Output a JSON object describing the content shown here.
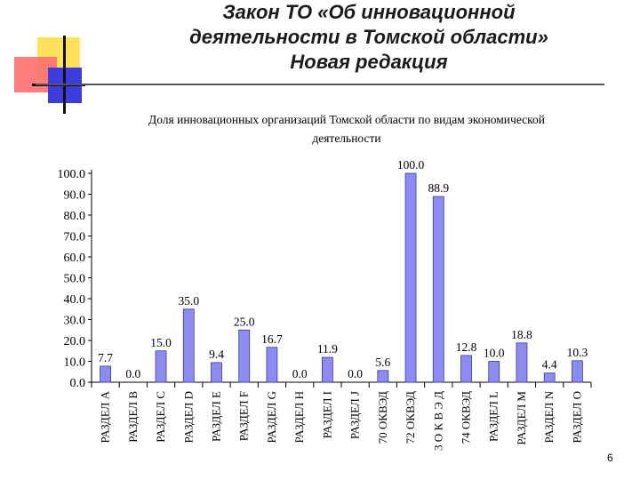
{
  "slide": {
    "title_lines": [
      "Закон ТО «Об инновационной",
      "деятельности в Томской области»",
      "Новая редакция"
    ],
    "page_number": "6"
  },
  "chart_data": {
    "type": "bar",
    "title": "Доля инновационных организаций Томской области по видам экономической деятельности",
    "title_lines": [
      "Доля инновационных организаций Томской области по видам экономической",
      "деятельности"
    ],
    "categories": [
      "РАЗДЕЛ A",
      "РАЗДЕЛ B",
      "РАЗДЕЛ C",
      "РАЗДЕЛ D",
      "РАЗДЕЛ E",
      "РАЗДЕЛ F",
      "РАЗДЕЛ G",
      "РАЗДЕЛ H",
      "РАЗДЕЛ I",
      "РАЗДЕЛ J",
      "70 ОКВЭД",
      "72 ОКВЭД",
      "3 О К В Э Д",
      "74 ОКВЭД",
      "РАЗДЕЛ L",
      "РАЗДЕЛ M",
      "РАЗДЕЛ N",
      "РАЗДЕЛ O"
    ],
    "values": [
      7.7,
      0.0,
      15.0,
      35.0,
      9.4,
      25.0,
      16.7,
      0.0,
      11.9,
      0.0,
      5.6,
      100.0,
      88.9,
      12.8,
      10.0,
      18.8,
      4.4,
      10.3
    ],
    "value_labels": [
      "7.7",
      "0.0",
      "15.0",
      "35.0",
      "9.4",
      "25.0",
      "16.7",
      "0.0",
      "11.9",
      "0.0",
      "5.6",
      "100.0",
      "88.9",
      "12.8",
      "10.0",
      "18.8",
      "4.4",
      "10.3"
    ],
    "yticks": [
      "0.0",
      "10.0",
      "20.0",
      "30.0",
      "40.0",
      "50.0",
      "60.0",
      "70.0",
      "80.0",
      "90.0",
      "100.0"
    ],
    "ylim": [
      0,
      100
    ],
    "grid": false,
    "colors": {
      "bar": "#8c8cf0",
      "bar_stroke": "#3a3aa8",
      "axis": "#000000"
    }
  }
}
